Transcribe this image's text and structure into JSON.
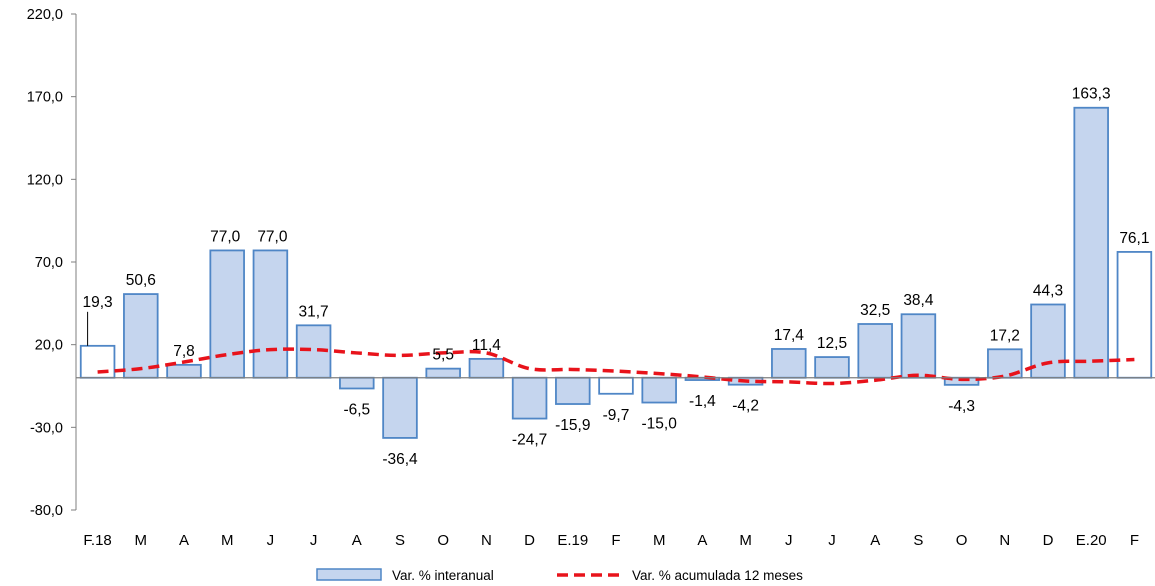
{
  "chart_data": {
    "type": "bar",
    "categories": [
      "F.18",
      "M",
      "A",
      "M",
      "J",
      "J",
      "A",
      "S",
      "O",
      "N",
      "D",
      "E.19",
      "F",
      "M",
      "A",
      "M",
      "J",
      "J",
      "A",
      "S",
      "O",
      "N",
      "D",
      "E.20",
      "F"
    ],
    "series": [
      {
        "name": "Var. % interanual",
        "type": "bar",
        "values": [
          19.3,
          50.6,
          7.8,
          77.0,
          77.0,
          31.7,
          -6.5,
          -36.4,
          5.5,
          11.4,
          -24.7,
          -15.9,
          -9.7,
          -15.0,
          -1.4,
          -4.2,
          17.4,
          12.5,
          32.5,
          38.4,
          -4.3,
          17.2,
          44.3,
          163.3,
          76.1
        ],
        "labels": [
          "19,3",
          "50,6",
          "7,8",
          "77,0",
          "77,0",
          "31,7",
          "-6,5",
          "-36,4",
          "5,5",
          "11,4",
          "-24,7",
          "-15,9",
          "-9,7",
          "-15,0",
          "-1,4",
          "-4,2",
          "17,4",
          "12,5",
          "32,5",
          "38,4",
          "-4,3",
          "17,2",
          "44,3",
          "163,3",
          "76,1"
        ],
        "color": "#c5d5ee",
        "border_color": "#4f86c6",
        "white_fill_categories": [
          0,
          12,
          24
        ]
      },
      {
        "name": "Var. % acumulada 12 meses",
        "type": "line",
        "style": "dashed",
        "color": "#e8131b",
        "values": [
          3.5,
          5.5,
          9.5,
          14.0,
          17.0,
          17.0,
          15.0,
          13.5,
          15.0,
          15.0,
          5.5,
          5.0,
          4.0,
          2.5,
          0.5,
          -2.0,
          -2.5,
          -3.5,
          -1.5,
          1.5,
          -1.0,
          1.0,
          9.0,
          10.0,
          11.0
        ]
      }
    ],
    "yticks": [
      "220,0",
      "170,0",
      "120,0",
      "70,0",
      "20,0",
      "-30,0",
      "-80,0"
    ],
    "ylim": [
      -80,
      220
    ],
    "grid": false,
    "legend_position": "bottom",
    "colors": {
      "axis": "#7f7f7f",
      "text": "#000000"
    }
  }
}
